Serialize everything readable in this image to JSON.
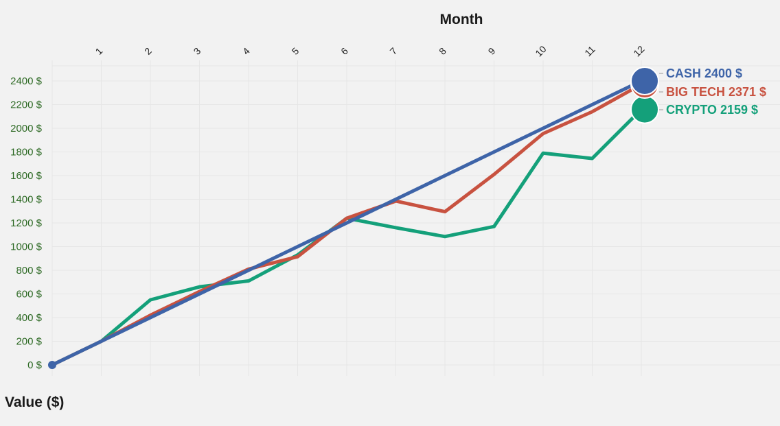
{
  "chart_data": {
    "type": "line",
    "xlabel": "Month",
    "ylabel": "Value ($)",
    "x": [
      0,
      1,
      2,
      3,
      4,
      5,
      6,
      7,
      8,
      9,
      10,
      11,
      12
    ],
    "x_tick_labels": [
      "1",
      "2",
      "3",
      "4",
      "5",
      "6",
      "7",
      "8",
      "9",
      "10",
      "11",
      "12"
    ],
    "ylim": [
      0,
      2400
    ],
    "y_ticks": [
      0,
      200,
      400,
      600,
      800,
      1000,
      1200,
      1400,
      1600,
      1800,
      2000,
      2200,
      2400
    ],
    "y_tick_labels": [
      "0 $",
      "200 $",
      "400 $",
      "600 $",
      "800 $",
      "1000 $",
      "1200 $",
      "1400 $",
      "1600 $",
      "1800 $",
      "2000 $",
      "2200 $",
      "2400 $"
    ],
    "grid": true,
    "series": [
      {
        "name": "CRYPTO",
        "color": "#14a07a",
        "values": [
          0,
          200,
          550,
          660,
          710,
          930,
          1240,
          1160,
          1085,
          1170,
          1790,
          1745,
          2159
        ],
        "end_label": "CRYPTO 2159 $"
      },
      {
        "name": "BIG TECH",
        "color": "#c85240",
        "values": [
          0,
          200,
          420,
          620,
          810,
          915,
          1240,
          1385,
          1295,
          1610,
          1955,
          2140,
          2371
        ],
        "end_label": "BIG TECH 2371 $"
      },
      {
        "name": "CASH",
        "color": "#3e64a8",
        "values": [
          0,
          200,
          400,
          600,
          800,
          1000,
          1200,
          1400,
          1600,
          1800,
          2000,
          2200,
          2400
        ],
        "end_label": "CASH 2400 $"
      }
    ]
  }
}
